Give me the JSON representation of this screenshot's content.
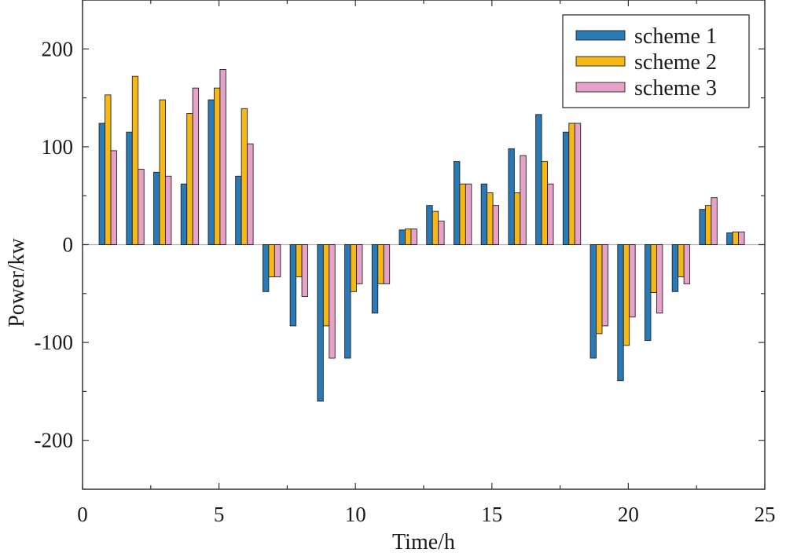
{
  "chart_data": {
    "type": "bar",
    "title": "",
    "xlabel": "Time/h",
    "ylabel": "Power/kw",
    "xlim": [
      0,
      25
    ],
    "ylim": [
      -250,
      250
    ],
    "xticks": [
      0,
      5,
      10,
      15,
      20,
      25
    ],
    "yticks": [
      -200,
      -100,
      0,
      100,
      200
    ],
    "xtick_labels": [
      "0",
      "5",
      "10",
      "15",
      "20",
      "25"
    ],
    "ytick_labels": [
      "-200",
      "-100",
      "0",
      "100",
      "200"
    ],
    "grid": false,
    "legend_position": "top-right",
    "x": [
      1,
      2,
      3,
      4,
      5,
      6,
      7,
      8,
      9,
      10,
      11,
      12,
      13,
      14,
      15,
      16,
      17,
      18,
      19,
      20,
      21,
      22,
      23,
      24
    ],
    "series": [
      {
        "name": "scheme 1",
        "color": "#2a7ab8",
        "values": [
          124,
          115,
          74,
          62,
          148,
          70,
          -48,
          -83,
          -160,
          -116,
          -70,
          15,
          40,
          85,
          62,
          98,
          133,
          115,
          -116,
          -139,
          -98,
          -48,
          36,
          12
        ]
      },
      {
        "name": "scheme 2",
        "color": "#f5b817",
        "values": [
          153,
          172,
          148,
          134,
          160,
          139,
          -33,
          -33,
          -83,
          -48,
          -40,
          16,
          34,
          62,
          53,
          53,
          85,
          124,
          -91,
          -103,
          -49,
          -33,
          40,
          13
        ]
      },
      {
        "name": "scheme 3",
        "color": "#e6a2c9",
        "values": [
          96,
          77,
          70,
          160,
          179,
          103,
          -33,
          -53,
          -116,
          -40,
          -40,
          16,
          24,
          62,
          40,
          91,
          62,
          124,
          -83,
          -74,
          -70,
          -40,
          48,
          13
        ]
      }
    ]
  }
}
